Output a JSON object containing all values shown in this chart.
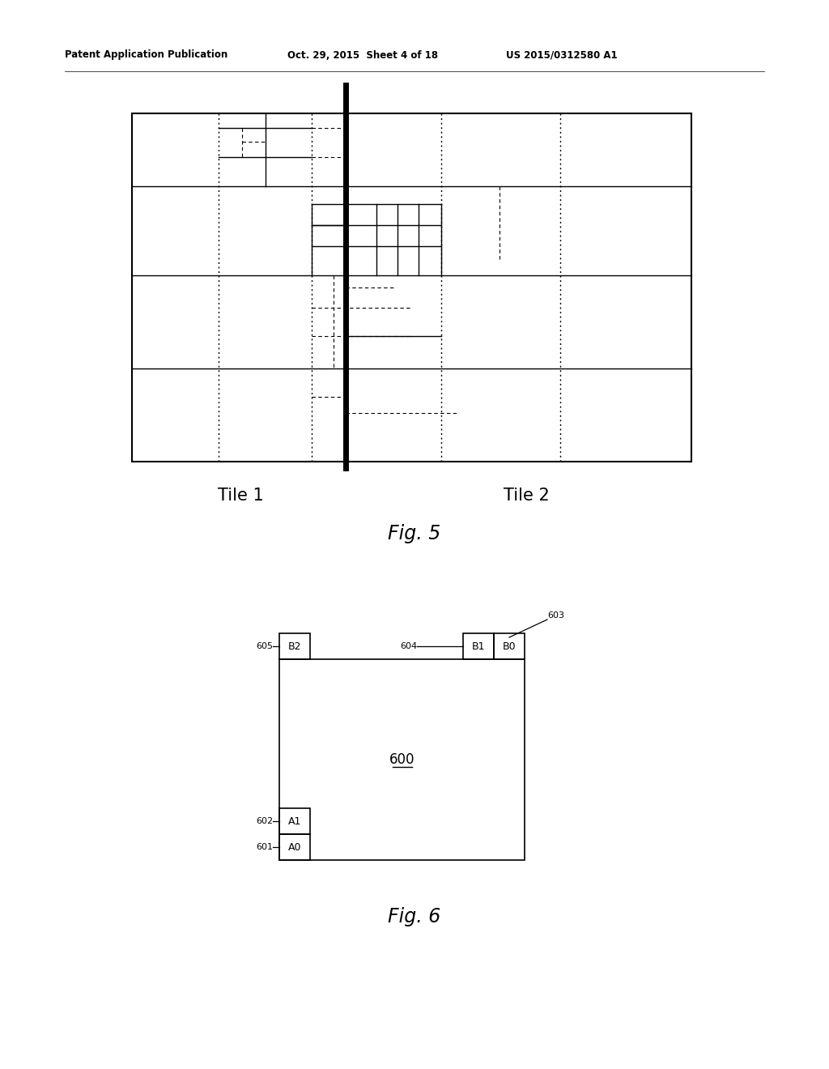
{
  "header_left": "Patent Application Publication",
  "header_mid": "Oct. 29, 2015  Sheet 4 of 18",
  "header_right": "US 2015/0312580 A1",
  "fig5_label": "Fig. 5",
  "fig6_label": "Fig. 6",
  "tile1_label": "Tile 1",
  "tile2_label": "Tile 2",
  "background": "#ffffff"
}
